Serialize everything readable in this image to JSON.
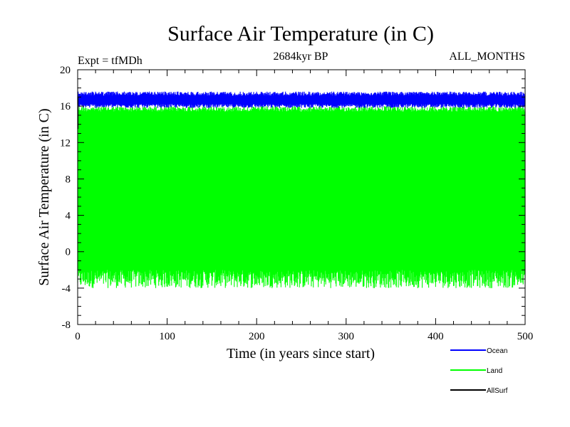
{
  "chart_data": {
    "type": "line",
    "title": "Surface Air Temperature (in C)",
    "subtitle": "2684kyr BP",
    "experiment_label": "Expt = tfMDh",
    "period_label": "ALL_MONTHS",
    "xlabel": "Time (in years since start)",
    "ylabel": "Surface Air Temperature (in C)",
    "xlim": [
      0,
      500
    ],
    "ylim": [
      -8,
      20
    ],
    "x_ticks": [
      "0",
      "100",
      "200",
      "300",
      "400",
      "500"
    ],
    "y_ticks": [
      "-8",
      "-4",
      "0",
      "4",
      "8",
      "12",
      "16",
      "20"
    ],
    "x_tick_values": [
      0,
      100,
      200,
      300,
      400,
      500
    ],
    "y_tick_values": [
      -8,
      -4,
      0,
      4,
      8,
      12,
      16,
      20
    ],
    "series": [
      {
        "name": "Ocean",
        "color": "#0000ff",
        "min_approx": 15.8,
        "max_approx": 17.6
      },
      {
        "name": "Land",
        "color": "#00ff00",
        "min_approx": -4.0,
        "max_approx": 16.0
      },
      {
        "name": "AllSurf",
        "color": "#000000",
        "min_approx": 13.5,
        "max_approx": 17.0
      }
    ],
    "legend_position": "bottom-right"
  }
}
